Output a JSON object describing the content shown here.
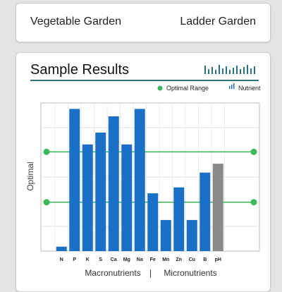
{
  "header": {
    "left_label": "Vegetable Garden",
    "right_label": "Ladder Garden"
  },
  "card": {
    "title": "Sample Results"
  },
  "colors": {
    "bar": "#1a70c6",
    "bar_ph": "#8a8a8a",
    "optimal": "#3cba5c",
    "rule": "#2c6f8a"
  },
  "chart_data": {
    "type": "bar",
    "ylabel": "Optimal",
    "ylim": [
      0,
      100
    ],
    "categories": [
      "N",
      "P",
      "K",
      "S",
      "Ca",
      "Mg",
      "Na",
      "Fe",
      "Mn",
      "Zn",
      "Cu",
      "B",
      "pH"
    ],
    "values": [
      3,
      96,
      72,
      80,
      91,
      72,
      96,
      39,
      21,
      43,
      21,
      53,
      59
    ],
    "optimal_lines": [
      67,
      33
    ],
    "legend": [
      {
        "label": "Optimal Range",
        "icon": "dot-icon"
      },
      {
        "label": "Nutrient",
        "icon": "bar-icon"
      }
    ],
    "group_labels": [
      "Macronutrients",
      "Micronutrients"
    ],
    "grid": true
  }
}
